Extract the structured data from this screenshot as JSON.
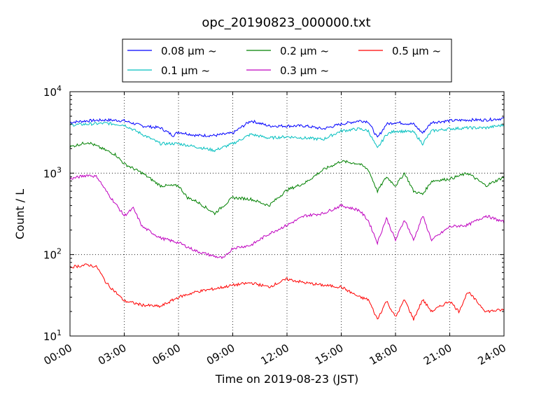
{
  "chart_data": {
    "type": "line",
    "title": "opc_20190823_000000.txt",
    "xlabel": "Time on 2019-08-23 (JST)",
    "ylabel": "Count / L",
    "x_unit": "hours",
    "xlim": [
      0,
      24
    ],
    "ylim": [
      10,
      10000
    ],
    "yscale": "log",
    "grid": true,
    "legend_position": "top",
    "x_ticks": [
      {
        "value": 0,
        "label": "00:00"
      },
      {
        "value": 3,
        "label": "03:00"
      },
      {
        "value": 6,
        "label": "06:00"
      },
      {
        "value": 9,
        "label": "09:00"
      },
      {
        "value": 12,
        "label": "12:00"
      },
      {
        "value": 15,
        "label": "15:00"
      },
      {
        "value": 18,
        "label": "18:00"
      },
      {
        "value": 21,
        "label": "21:00"
      },
      {
        "value": 24,
        "label": "24:00"
      }
    ],
    "y_ticks": [
      {
        "value": 10,
        "base": "10",
        "exp": "1"
      },
      {
        "value": 100,
        "base": "10",
        "exp": "2"
      },
      {
        "value": 1000,
        "base": "10",
        "exp": "3"
      },
      {
        "value": 10000,
        "base": "10",
        "exp": "4"
      }
    ],
    "series": [
      {
        "name": "0.08 μm ~",
        "color": "#0000ff",
        "x": [
          0,
          1,
          2,
          3,
          4,
          5,
          5.7,
          6,
          7,
          8,
          9,
          10,
          11,
          12,
          13,
          14,
          15,
          16,
          16.5,
          17,
          17.5,
          18,
          19,
          19.5,
          20,
          21,
          22,
          23,
          24
        ],
        "y": [
          4200,
          4400,
          4500,
          4400,
          3800,
          3600,
          2900,
          3200,
          2900,
          2900,
          3100,
          4400,
          3800,
          3800,
          3800,
          3500,
          4000,
          4400,
          4300,
          2700,
          4000,
          4200,
          4000,
          3100,
          4200,
          4400,
          4500,
          4500,
          4700
        ]
      },
      {
        "name": "0.1 μm ~",
        "color": "#00bfbf",
        "x": [
          0,
          1,
          2,
          3,
          4,
          5,
          6,
          7,
          8,
          9,
          10,
          11,
          12,
          13,
          14,
          15,
          16,
          16.5,
          17,
          17.5,
          18,
          19,
          19.5,
          20,
          21,
          22,
          23,
          24
        ],
        "y": [
          3900,
          4000,
          4100,
          3900,
          3000,
          2300,
          2300,
          2100,
          1900,
          2300,
          3000,
          2700,
          2800,
          2700,
          2600,
          3300,
          3500,
          3300,
          2000,
          3000,
          3300,
          3200,
          2300,
          3300,
          3500,
          3600,
          3600,
          3900
        ]
      },
      {
        "name": "0.2 μm ~",
        "color": "#008000",
        "x": [
          0,
          1,
          2,
          2.5,
          3,
          4,
          5,
          6,
          6.5,
          7,
          8,
          9,
          10,
          11,
          12,
          13,
          14,
          15,
          16,
          16.5,
          17,
          17.5,
          18,
          18.5,
          19,
          19.5,
          20,
          21,
          22,
          23,
          24
        ],
        "y": [
          2100,
          2400,
          1900,
          1700,
          1300,
          1000,
          700,
          700,
          500,
          450,
          320,
          500,
          480,
          400,
          620,
          760,
          1100,
          1400,
          1300,
          1100,
          600,
          900,
          700,
          1000,
          600,
          550,
          800,
          850,
          1000,
          700,
          900
        ]
      },
      {
        "name": "0.3 μm ~",
        "color": "#bf00bf",
        "x": [
          0,
          1,
          1.5,
          2,
          3,
          3.5,
          4,
          5,
          6,
          7,
          8,
          8.5,
          9,
          10,
          11,
          12,
          13,
          14,
          15,
          16,
          16.5,
          17,
          17.5,
          18,
          18.5,
          19,
          19.5,
          20,
          21,
          22,
          23,
          24
        ],
        "y": [
          850,
          950,
          900,
          600,
          300,
          370,
          220,
          160,
          140,
          110,
          95,
          90,
          120,
          130,
          180,
          230,
          300,
          320,
          400,
          350,
          260,
          140,
          280,
          150,
          270,
          150,
          300,
          150,
          220,
          230,
          300,
          250
        ]
      },
      {
        "name": "0.5 μm ~",
        "color": "#ff0000",
        "x": [
          0,
          1,
          1.5,
          2,
          3,
          4,
          5,
          6,
          7,
          8,
          9,
          10,
          11,
          12,
          13,
          14,
          15,
          16,
          16.5,
          17,
          17.5,
          18,
          18.5,
          19,
          19.5,
          20,
          21,
          21.5,
          22,
          23,
          24
        ],
        "y": [
          70,
          75,
          70,
          45,
          27,
          24,
          23,
          30,
          35,
          38,
          42,
          45,
          40,
          50,
          45,
          42,
          40,
          30,
          28,
          16,
          27,
          17,
          28,
          16,
          28,
          20,
          27,
          20,
          35,
          20,
          21
        ]
      }
    ]
  }
}
